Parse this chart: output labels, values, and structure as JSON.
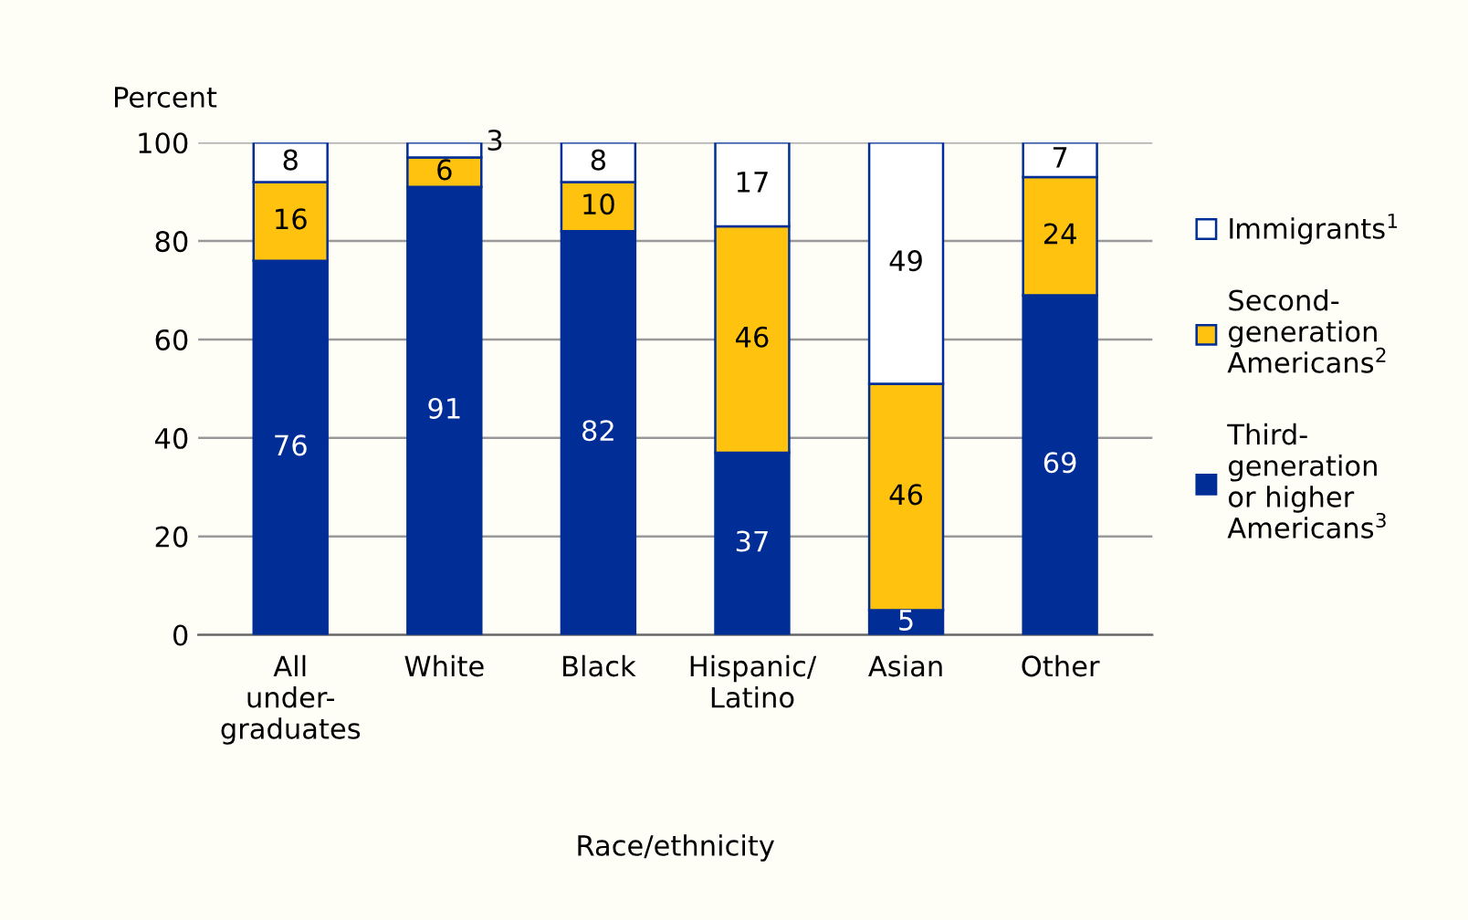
{
  "chart_data": {
    "type": "bar",
    "stacked": true,
    "xlabel": "Race/ethnicity",
    "ylabel": "Percent",
    "categories": [
      "All\nunder-\ngraduates",
      "White",
      "Black",
      "Hispanic/\nLatino",
      "Asian",
      "Other"
    ],
    "series": [
      {
        "name": "Third-\ngeneration\nor higher\nAmericans$^{3}$",
        "color": "#002d96",
        "values": [
          76,
          91,
          82,
          37,
          5,
          69
        ]
      },
      {
        "name": "Second-\ngeneration\nAmericans$^{2}$",
        "color": "#ffc20e",
        "values": [
          16,
          6,
          10,
          46,
          46,
          24
        ]
      },
      {
        "name": "Immigrants$^{1}$",
        "color": "#ffffff",
        "values": [
          8,
          3,
          8,
          17,
          49,
          7
        ]
      }
    ],
    "ylim": [
      0,
      100
    ],
    "yticks": [
      0,
      20,
      40,
      60,
      80,
      100
    ],
    "grid": "y",
    "legend": "right",
    "data_labels": true
  }
}
